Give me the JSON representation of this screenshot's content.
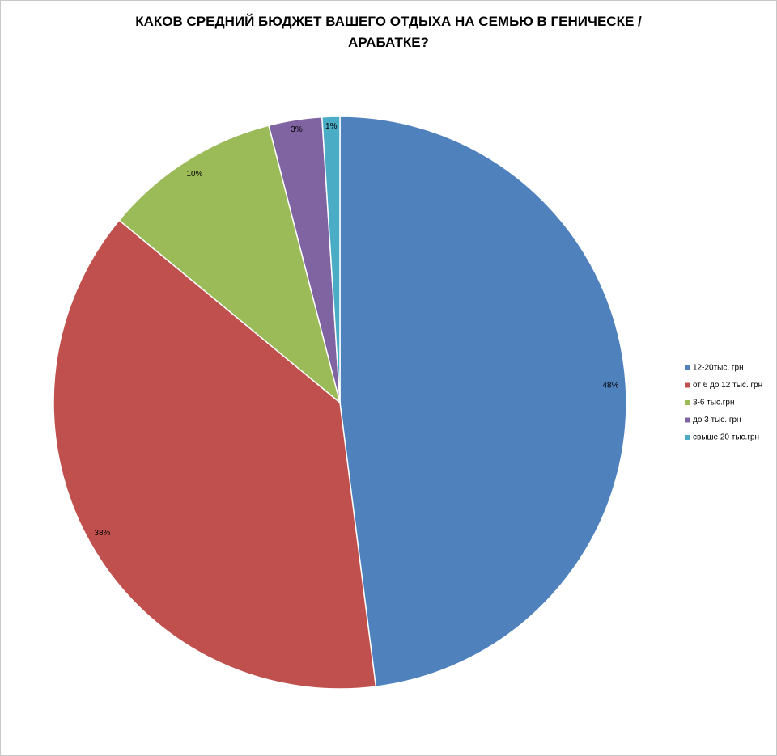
{
  "chart_data": {
    "type": "pie",
    "title": "КАКОВ СРЕДНИЙ БЮДЖЕТ ВАШЕГО ОТДЫХА НА СЕМЬЮ В ГЕНИЧЕСКЕ / АРАБАТКЕ?",
    "categories": [
      "12-20тыс. грн",
      "от 6 до 12 тыс. грн",
      "3-6 тыс.грн",
      "до 3 тыс. грн",
      "свыше 20 тыс.грн"
    ],
    "values": [
      48,
      38,
      10,
      3,
      1
    ],
    "value_labels": [
      "48%",
      "38%",
      "10%",
      "3%",
      "1%"
    ],
    "colors": [
      "#4f81bd",
      "#c0504d",
      "#9bbb59",
      "#8064a2",
      "#4bacc6"
    ],
    "legend": "right"
  }
}
